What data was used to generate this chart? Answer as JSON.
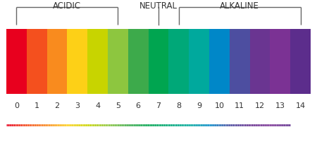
{
  "ph_colors": [
    "#E8001E",
    "#F4501E",
    "#F98B1E",
    "#FDD017",
    "#C8D400",
    "#8DC63F",
    "#3DAA4B",
    "#00A550",
    "#00A878",
    "#00A99D",
    "#0087C8",
    "#4D4EA0",
    "#6A3591",
    "#7B3294",
    "#5C2D8C"
  ],
  "labels": [
    "0",
    "1",
    "2",
    "3",
    "4",
    "5",
    "6",
    "7",
    "8",
    "9",
    "10",
    "11",
    "12",
    "13",
    "14"
  ],
  "background_color": "#FFFFFF",
  "label_color": "#333333",
  "bracket_color": "#666666",
  "section_labels": [
    "ACIDIC",
    "NEUTRAL",
    "ALKALINE"
  ],
  "gradient_colors_left": "#E8001E",
  "gradient_colors_right": "#5C2D8C"
}
